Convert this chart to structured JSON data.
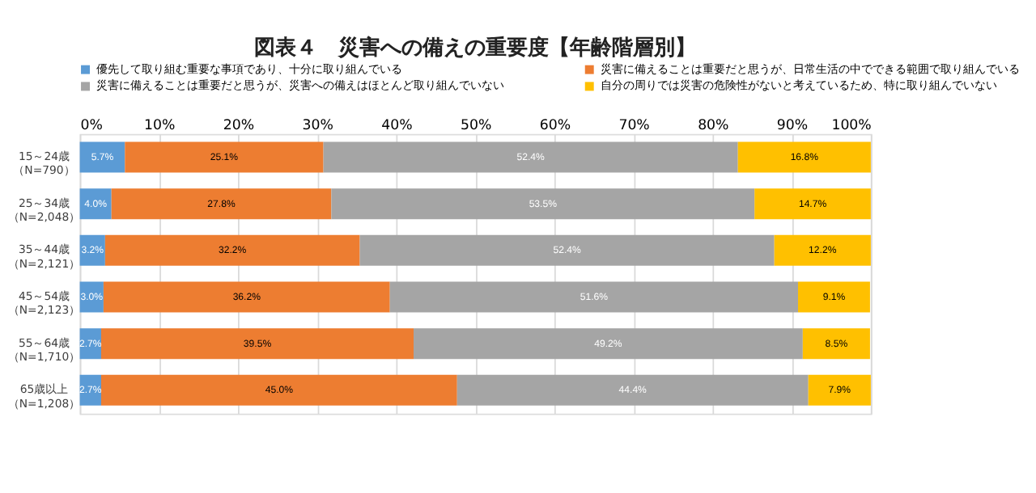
{
  "chart_data": {
    "type": "bar",
    "orientation": "horizontal",
    "stacked": true,
    "title": "図表４　災害への備えの重要度【年齢階層別】",
    "categories": [
      "15～24歳（N=790）",
      "25～34歳（N=2,048）",
      "35～44歳（N=2,121）",
      "45～54歳（N=2,123）",
      "55～64歳（N=1,710）",
      "65歳以上（N=1,208）"
    ],
    "series": [
      {
        "name": "優先して取り組む重要な事項であり、十分に取り組んでいる",
        "color": "#5b9bd5",
        "values": [
          5.7,
          4.0,
          3.2,
          3.0,
          2.7,
          2.7
        ],
        "value_labels": [
          "5.7%",
          "4.0%",
          "3.2%",
          "3.0%",
          "2.7%",
          "2.7%"
        ]
      },
      {
        "name": "災害に備えることは重要だと思うが、日常生活の中でできる範囲で取り組んでいる",
        "color": "#ed7d31",
        "values": [
          25.1,
          27.8,
          32.2,
          36.2,
          39.5,
          45.0
        ],
        "value_labels": [
          "25.1%",
          "27.8%",
          "32.2%",
          "36.2%",
          "39.5%",
          "45.0%"
        ]
      },
      {
        "name": "災害に備えることは重要だと思うが、災害への備えはほとんど取り組んでいない",
        "color": "#a5a5a5",
        "values": [
          52.4,
          53.5,
          52.4,
          51.6,
          49.2,
          44.4
        ],
        "value_labels": [
          "52.4%",
          "53.5%",
          "52.4%",
          "51.6%",
          "49.2%",
          "44.4%"
        ]
      },
      {
        "name": "自分の周りでは災害の危険性がないと考えているため、特に取り組んでいない",
        "color": "#ffc000",
        "values": [
          16.8,
          14.7,
          12.2,
          9.1,
          8.5,
          7.9
        ],
        "value_labels": [
          "16.8%",
          "14.7%",
          "12.2%",
          "9.1%",
          "8.5%",
          "7.9%"
        ]
      }
    ],
    "xlim": [
      0,
      100
    ],
    "xticks": [
      {
        "value": 0,
        "label": "0%"
      },
      {
        "value": 10,
        "label": "10%"
      },
      {
        "value": 20,
        "label": "20%"
      },
      {
        "value": 30,
        "label": "30%"
      },
      {
        "value": 40,
        "label": "40%"
      },
      {
        "value": 50,
        "label": "50%"
      },
      {
        "value": 60,
        "label": "60%"
      },
      {
        "value": 70,
        "label": "70%"
      },
      {
        "value": 80,
        "label": "80%"
      },
      {
        "value": 90,
        "label": "90%"
      },
      {
        "value": 100,
        "label": "100%"
      }
    ],
    "grid": "x",
    "legend": "top"
  }
}
